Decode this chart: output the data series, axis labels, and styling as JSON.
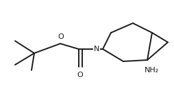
{
  "bg_color": "#ffffff",
  "line_color": "#1a1a1a",
  "line_width": 1.4,
  "text_color": "#1a1a1a",
  "font_size": 8.0,
  "NH2_label": "NH₂",
  "N_label": "N",
  "O_ester_label": "O",
  "O_carbonyl_label": "O"
}
